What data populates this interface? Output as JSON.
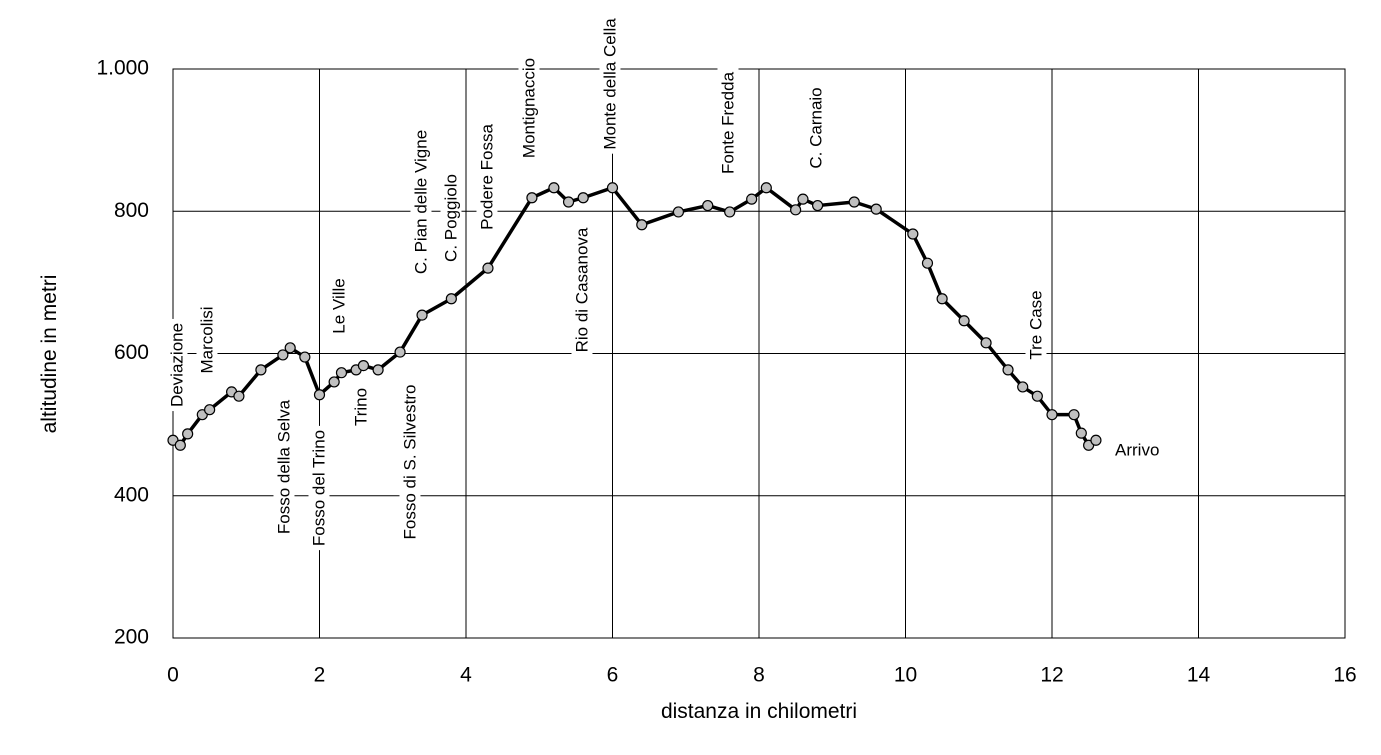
{
  "chart_data": {
    "type": "line",
    "x_label": "distanza in chilometri",
    "y_label": "altitudine  in metri",
    "xlim": [
      0,
      16
    ],
    "xticks": [
      0,
      2,
      4,
      6,
      8,
      10,
      12,
      14,
      16
    ],
    "ylim": [
      200,
      1000
    ],
    "yticks": [
      200,
      400,
      600,
      800,
      {
        "value": 1000,
        "label": "1.000"
      }
    ],
    "grid": true,
    "color": "#000000",
    "marker_color": "#c0c0c0",
    "x": [
      0,
      0.1,
      0.2,
      0.4,
      0.5,
      0.8,
      0.9,
      1.2,
      1.5,
      1.6,
      1.8,
      2.0,
      2.2,
      2.3,
      2.5,
      2.6,
      2.8,
      3.1,
      3.4,
      3.8,
      4.3,
      4.9,
      5.2,
      5.4,
      5.6,
      6.0,
      6.4,
      6.9,
      7.3,
      7.6,
      7.9,
      8.1,
      8.5,
      8.6,
      8.8,
      9.3,
      9.6,
      10.1,
      10.3,
      10.5,
      10.8,
      11.1,
      11.4,
      11.6,
      11.8,
      12.0,
      12.3,
      12.4,
      12.5,
      12.6
    ],
    "values": [
      478,
      471,
      487,
      514,
      521,
      546,
      540,
      577,
      598,
      608,
      595,
      542,
      560,
      573,
      577,
      583,
      577,
      602,
      654,
      677,
      720,
      819,
      833,
      813,
      819,
      833,
      781,
      799,
      808,
      799,
      817,
      833,
      802,
      817,
      808,
      813,
      803,
      768,
      727,
      677,
      646,
      615,
      577,
      553,
      540,
      514,
      514,
      488,
      471,
      478
    ],
    "annotations": [
      "Deviazione",
      "Marcolisi",
      "Fosso della Selva",
      "Fosso del Trino",
      "Le Ville",
      "Trino",
      "Fosso di S. Silvestro",
      "C. Pian delle Vigne",
      "C. Poggiolo",
      "Podere Fossa",
      "Montignaccio",
      "Rio di Casanova",
      "Monte della Cella",
      "Fonte Fredda",
      "C. Carnaio",
      "Tre Case",
      "Arrivo"
    ]
  }
}
